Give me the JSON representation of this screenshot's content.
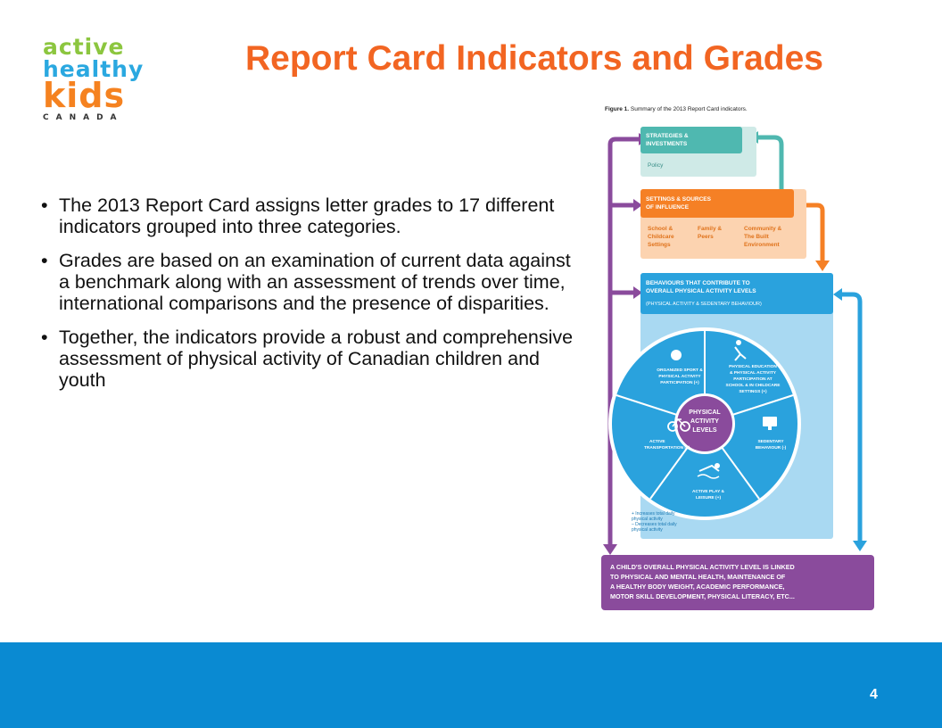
{
  "logo": {
    "line1": "active",
    "line2": "healthy",
    "line3": "kids",
    "line4": "CANADA"
  },
  "title": "Report Card Indicators and Grades",
  "bullets": [
    "The 2013 Report Card assigns letter grades to 17 different indicators grouped into three categories.",
    "Grades are based on an examination of current data against a benchmark along with an assessment of trends over time, international comparisons and the presence of disparities.",
    "Together, the indicators provide a robust and comprehensive assessment of physical activity of Canadian children and youth"
  ],
  "figure": {
    "caption_bold": "Figure 1.",
    "caption_text": " Summary of the 2013 Report Card indicators.",
    "strategies": {
      "title1": "STRATEGIES &",
      "title2": "INVESTMENTS",
      "sub": "Policy"
    },
    "settings": {
      "title1": "SETTINGS & SOURCES",
      "title2": "OF INFLUENCE",
      "col1": [
        "School &",
        "Childcare",
        "Settings"
      ],
      "col2": [
        "Family &",
        "Peers"
      ],
      "col3": [
        "Community &",
        "The Built",
        "Environment"
      ]
    },
    "behaviours": {
      "title1": "BEHAVIOURS THAT CONTRIBUTE TO",
      "title2": "OVERALL PHYSICAL ACTIVITY LEVELS",
      "sub": "(PHYSICAL ACTIVITY & SEDENTARY BEHAVIOUR)"
    },
    "center": [
      "PHYSICAL",
      "ACTIVITY",
      "LEVELS"
    ],
    "segments": {
      "sport": [
        "ORGANIZED SPORT &",
        "PHYSICAL ACTIVITY",
        "PARTICIPATION (+)"
      ],
      "pe": [
        "PHYSICAL EDUCATION",
        "& PHYSICAL ACTIVITY",
        "PARTICIPATION AT",
        "SCHOOL & IN CHILDCARE",
        "SETTINGS (+)"
      ],
      "transport": [
        "ACTIVE",
        "TRANSPORTATION (+)"
      ],
      "sedentary": [
        "SEDENTARY",
        "BEHAVIOUR (-)"
      ],
      "play": [
        "ACTIVE PLAY &",
        "LEISURE (+)"
      ]
    },
    "legend": [
      "+ Increases total daily",
      "   physical activity",
      "– Decreases total daily",
      "   physical activity"
    ],
    "outcome": [
      "A CHILD'S OVERALL PHYSICAL ACTIVITY LEVEL IS LINKED",
      "TO PHYSICAL AND MENTAL HEALTH, MAINTENANCE OF",
      "A HEALTHY BODY WEIGHT, ACADEMIC PERFORMANCE,",
      "MOTOR SKILL DEVELOPMENT, PHYSICAL LITERACY, ETC..."
    ]
  },
  "page_number": "4",
  "colors": {
    "title": "#f26522",
    "footer": "#0a8ad2",
    "teal": "#4fb8b0",
    "orange": "#f58025",
    "blue": "#2aa2dd",
    "purple": "#8a4b9c"
  }
}
